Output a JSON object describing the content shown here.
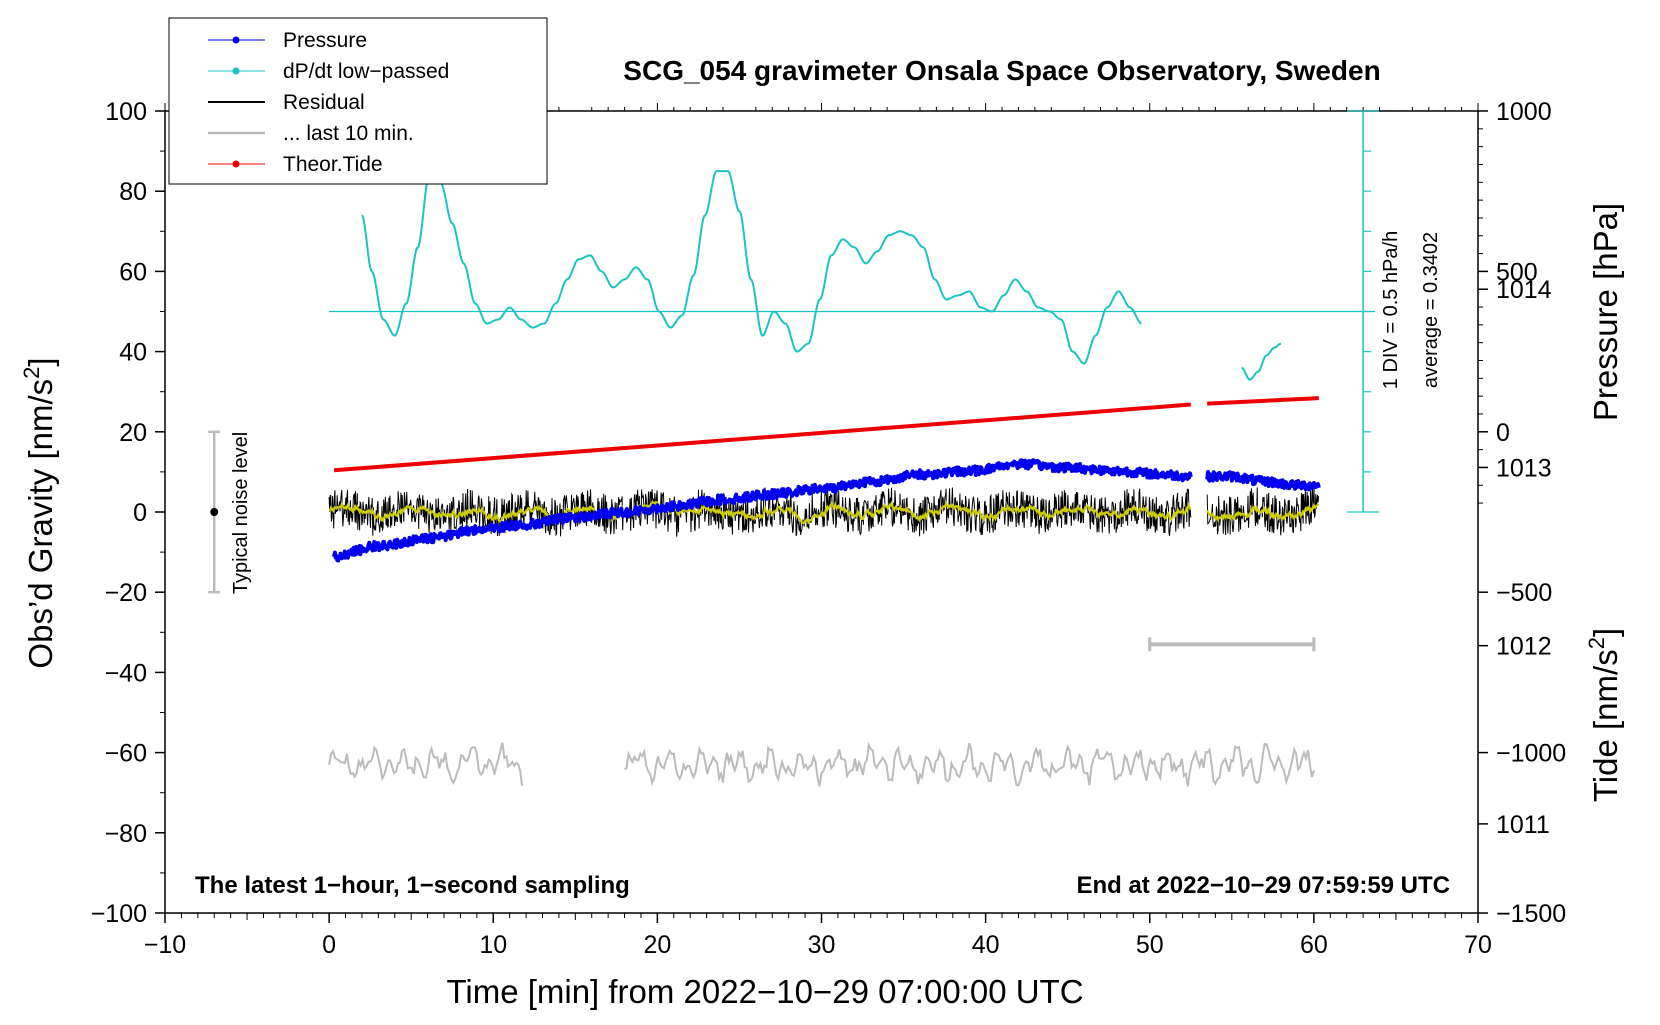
{
  "chart_data": {
    "type": "line",
    "title": "SCG_054 gravimeter Onsala Space Observatory, Sweden",
    "xlabel": "Time [min] from 2022−10−29 07:00:00 UTC",
    "ylabel_left_main": "Obs’d Gravity [nm/s",
    "ylabel_left_sup": "2",
    "ylabel_left_end": "]",
    "ylabel_right_top": "Pressure [hPa]",
    "ylabel_right_bottom_main": "Tide [nm/s",
    "ylabel_right_bottom_sup": "2",
    "ylabel_right_bottom_end": "]",
    "xlim": [
      -10,
      70
    ],
    "ylim": [
      -100,
      100
    ],
    "pressure_lim": [
      1010.5,
      1015
    ],
    "tide_lim": [
      -1500,
      1000
    ],
    "x_ticks": [
      "−10",
      "0",
      "10",
      "20",
      "30",
      "40",
      "50",
      "60",
      "70"
    ],
    "y_ticks": [
      "−100",
      "−80",
      "−60",
      "−40",
      "−20",
      "0",
      "20",
      "40",
      "60",
      "80",
      "100"
    ],
    "pressure_ticks": [
      "1011",
      "1012",
      "1013",
      "1014"
    ],
    "tide_ticks": [
      "−1500",
      "−1000",
      "−500",
      "0",
      "500",
      "1000"
    ],
    "legend": {
      "pressure": "Pressure",
      "dpdt": "dP/dt low−passed",
      "residual": "Residual",
      "last10": "... last 10 min.",
      "tide": "Theor.Tide"
    },
    "annotations": {
      "bottom_left": "The latest 1−hour, 1−second sampling",
      "bottom_right": "End at 2022−10−29 07:59:59 UTC",
      "noise": "Typical noise level",
      "div": "1 DIV = 0.5 hPa/h",
      "average": "average = 0.3402"
    },
    "noise_bar": {
      "x": -7,
      "y_min": -20,
      "y_max": 20,
      "center": 0
    },
    "last10_bracket": {
      "x_start": 50,
      "x_end": 60,
      "y": -33
    },
    "dpdt_scale": {
      "x": 63,
      "y_min": 0,
      "y_max": 100,
      "baseline": 50,
      "divisions": 10
    },
    "colors": {
      "pressure": "#0000ee",
      "dpdt": "#18c4c4",
      "residual": "#000000",
      "residual_smooth": "#cccc00",
      "last10": "#bbbbbb",
      "tide": "#ee0000"
    },
    "series": [
      {
        "name": "Pressure",
        "axis": "pressure_hPa",
        "segments": [
          {
            "x": [
              0.3,
              3,
              6,
              9,
              12,
              15,
              18,
              21,
              24,
              27,
              30,
              33,
              36,
              39,
              42,
              45,
              48,
              51,
              52.5
            ],
            "y": [
              1012.5,
              1012.56,
              1012.6,
              1012.65,
              1012.68,
              1012.72,
              1012.75,
              1012.78,
              1012.82,
              1012.85,
              1012.88,
              1012.92,
              1012.96,
              1012.98,
              1013.02,
              1013.0,
              1012.98,
              1012.96,
              1012.95
            ]
          },
          {
            "x": [
              53.5,
              55,
              57,
              59,
              60.3
            ],
            "y": [
              1012.95,
              1012.95,
              1012.92,
              1012.9,
              1012.9
            ]
          }
        ]
      },
      {
        "name": "dP/dt low-passed",
        "axis": "gravity",
        "segments": [
          {
            "x": [
              2,
              2.6,
              3.3,
              4.0,
              4.7,
              5.4,
              6.1,
              6.8,
              7.5,
              8.2,
              8.9,
              9.6,
              10.3,
              11.0,
              11.7,
              12.4,
              13.1,
              13.8,
              14.5,
              15.2,
              15.9,
              16.6,
              17.3,
              18.0,
              18.7,
              19.4,
              20.1,
              20.8,
              21.5,
              22.2,
              22.9,
              23.6,
              24.3,
              25.0,
              25.7,
              26.4,
              27.1,
              27.8,
              28.5,
              29.2,
              29.9,
              30.6,
              31.3,
              32.0,
              32.7,
              33.4,
              34.1,
              34.8,
              35.5,
              36.2,
              36.9,
              37.6,
              38.3,
              39.0,
              39.7,
              40.4,
              41.1,
              41.8,
              42.5,
              43.2,
              43.9,
              44.6,
              45.3,
              46.0,
              46.7,
              47.4,
              48.1,
              48.8,
              49.5
            ],
            "y": [
              74,
              60,
              48,
              44,
              52,
              66,
              84,
              82,
              72,
              62,
              52,
              47,
              48,
              51,
              48,
              46,
              47,
              52,
              58,
              63,
              64,
              60,
              56,
              58,
              61,
              58,
              50,
              46,
              49,
              59,
              74,
              85,
              85,
              75,
              58,
              44,
              50,
              47,
              40,
              42,
              53,
              64,
              68,
              66,
              62,
              65,
              69,
              70,
              69,
              66,
              58,
              53,
              54,
              55,
              51,
              50,
              54,
              58,
              55,
              51,
              50,
              48,
              40,
              37,
              44,
              51,
              55,
              51,
              47
            ]
          },
          {
            "x": [
              55.6,
              56.1,
              56.6,
              57.1,
              57.6,
              58.0
            ],
            "y": [
              36,
              33,
              35,
              39,
              41,
              42
            ]
          }
        ]
      },
      {
        "name": "Residual",
        "axis": "gravity",
        "segments": [
          {
            "x_start": 0,
            "x_end": 52.5,
            "center": 0,
            "amplitude": 5
          },
          {
            "x_start": 53.5,
            "x_end": 60.3,
            "center": 0,
            "amplitude": 5
          }
        ]
      },
      {
        "name": "... last 10 min.",
        "axis": "gravity",
        "segments": [
          {
            "x_start": 0,
            "x_end": 11.8,
            "center": -63,
            "amplitude": 4
          },
          {
            "x_start": 18,
            "x_end": 60,
            "center": -63,
            "amplitude": 4
          }
        ]
      },
      {
        "name": "Theor.Tide",
        "axis": "tide",
        "segments": [
          {
            "x": [
              0.3,
              52.5
            ],
            "y": [
              -120,
              85
            ]
          },
          {
            "x": [
              53.5,
              60.3
            ],
            "y": [
              88,
              105
            ]
          }
        ]
      }
    ]
  }
}
